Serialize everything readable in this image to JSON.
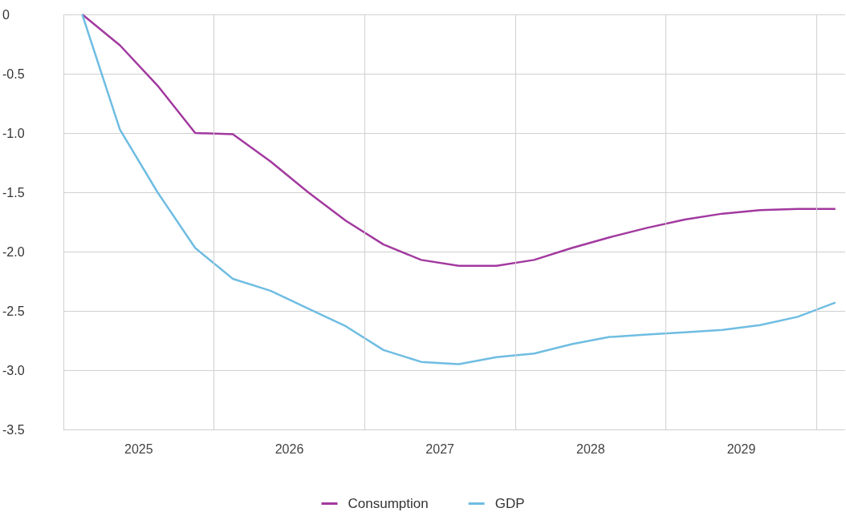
{
  "chart_data": {
    "type": "line",
    "x": [
      2024.625,
      2024.875,
      2025.125,
      2025.375,
      2025.625,
      2025.875,
      2026.125,
      2026.375,
      2026.625,
      2026.875,
      2027.125,
      2027.375,
      2027.625,
      2027.875,
      2028.125,
      2028.375,
      2028.625,
      2028.875,
      2029.125,
      2029.375,
      2029.625
    ],
    "series": [
      {
        "name": "Consumption",
        "color": "#a2399f",
        "values": [
          0,
          -0.26,
          -0.6,
          -1.0,
          -1.01,
          -1.24,
          -1.5,
          -1.74,
          -1.94,
          -2.07,
          -2.12,
          -2.12,
          -2.07,
          -1.97,
          -1.88,
          -1.8,
          -1.73,
          -1.68,
          -1.65,
          -1.64,
          -1.64
        ]
      },
      {
        "name": "GDP",
        "color": "#6fbde2",
        "values": [
          0,
          -0.97,
          -1.5,
          -1.97,
          -2.23,
          -2.33,
          -2.48,
          -2.63,
          -2.83,
          -2.93,
          -2.95,
          -2.89,
          -2.86,
          -2.78,
          -2.72,
          -2.7,
          -2.68,
          -2.66,
          -2.62,
          -2.55,
          -2.43
        ]
      }
    ],
    "xlim": [
      2024.5,
      2029.69
    ],
    "xticks": [
      {
        "value": 2024.5,
        "label": null
      },
      2025,
      {
        "value": 2025.5,
        "label": null
      },
      2026,
      {
        "value": 2026.5,
        "label": null
      },
      2027,
      {
        "value": 2027.5,
        "label": null
      },
      2028,
      {
        "value": 2028.5,
        "label": null
      },
      2029,
      {
        "value": 2029.5,
        "label": null
      }
    ],
    "ylim": [
      -3.5,
      0
    ],
    "yticks": [
      -3.5,
      {
        "value": -3,
        "label": "-3.0"
      },
      -2.5,
      {
        "value": -2,
        "label": "-2.0"
      },
      -1.5,
      {
        "value": -1,
        "label": "-1.0"
      },
      -0.5,
      0
    ],
    "grid": true,
    "legend": "bottom",
    "marker": "none",
    "line_style": "solid"
  }
}
